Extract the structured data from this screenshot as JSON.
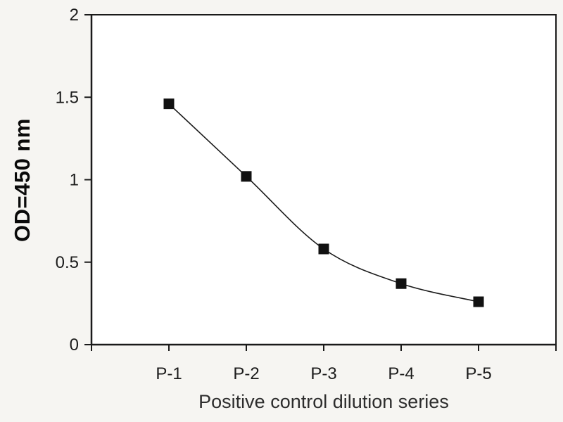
{
  "figure": {
    "colors": {
      "background": "#f6f5f2",
      "plot_background": "#ffffff",
      "axis": "#1a1a1a",
      "line": "#1a1a1a",
      "marker": "#111111",
      "tick_text": "#1c1c1c",
      "xlabel_text": "#2d2d2d",
      "ylabel_text": "#0a0a0a"
    }
  },
  "chart_data": {
    "type": "line",
    "xlabel": "Positive control dilution series",
    "ylabel": "OD=450 nm",
    "categories": [
      "P-1",
      "P-2",
      "P-3",
      "P-4",
      "P-5"
    ],
    "values": [
      1.46,
      1.02,
      0.58,
      0.37,
      0.26
    ],
    "ylim": [
      0,
      2
    ],
    "yticks": [
      0,
      0.5,
      1,
      1.5,
      2
    ],
    "ytick_labels": [
      "0",
      "0.5",
      "1",
      "1.5",
      "2"
    ],
    "x_tick_interval_count": 6,
    "grid": false,
    "legend": false,
    "marker_style": "square",
    "line_smooth": true
  }
}
